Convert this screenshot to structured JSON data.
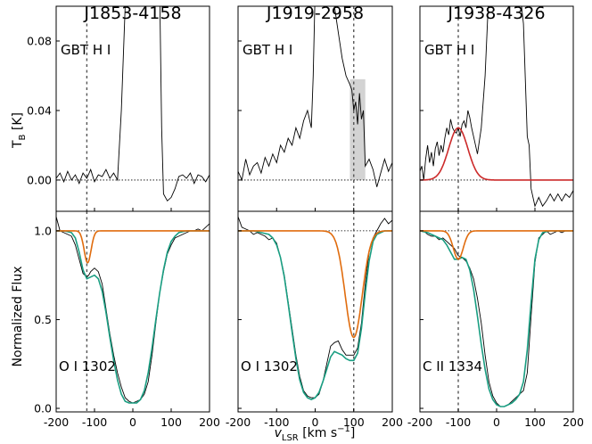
{
  "chart_data": {
    "type": "line",
    "figure": {
      "ylabel_top": "T",
      "ylabel_top_sub": "B",
      "ylabel_top_unit": " [K]",
      "ylabel_bottom": "Normalized Flux",
      "xlabel_main": "v",
      "xlabel_sub": "LSR",
      "xlabel_unit": " [km s",
      "xlabel_sup": "−1",
      "xlabel_end": "]"
    },
    "xlim": [
      -200,
      200
    ],
    "xticks": [
      -200,
      -100,
      0,
      100,
      200
    ],
    "top_ylim": [
      -0.018,
      0.1
    ],
    "top_yticks": [
      0.0,
      0.04,
      0.08
    ],
    "top_ytick_labels": [
      "0.00",
      "0.04",
      "0.08"
    ],
    "bottom_ylim": [
      -0.02,
      1.11
    ],
    "bottom_yticks": [
      0.0,
      0.5,
      1.0
    ],
    "bottom_ytick_labels": [
      "0.0",
      "0.5",
      "1.0"
    ],
    "colors": {
      "data": "#000000",
      "fit_total": "#1a9e82",
      "fit_component": "#e06c0e",
      "hi_fit": "#cc2a2a",
      "shade": "#d3d3d3"
    },
    "panels": [
      {
        "name": "J1853-4158",
        "hi_label": "GBT H I",
        "ion_label": "O I 1302",
        "vline": -120,
        "hi_x": [
          -200,
          -190,
          -180,
          -170,
          -160,
          -150,
          -140,
          -130,
          -120,
          -110,
          -100,
          -90,
          -80,
          -70,
          -60,
          -50,
          -40,
          -30,
          -20,
          -10,
          0,
          10,
          20,
          30,
          40,
          50,
          60,
          70,
          75,
          80,
          90,
          100,
          110,
          120,
          130,
          140,
          150,
          160,
          170,
          180,
          190,
          200
        ],
        "hi_y": [
          0.001,
          0.004,
          -0.001,
          0.005,
          0.0,
          0.003,
          -0.002,
          0.004,
          0.001,
          0.006,
          -0.001,
          0.003,
          0.002,
          0.006,
          0.001,
          0.004,
          0.0,
          0.04,
          0.1,
          0.11,
          0.11,
          0.11,
          0.11,
          0.11,
          0.11,
          0.11,
          0.11,
          0.11,
          0.03,
          -0.008,
          -0.012,
          -0.01,
          -0.005,
          0.002,
          0.003,
          0.001,
          0.004,
          -0.002,
          0.003,
          0.002,
          -0.001,
          0.003
        ],
        "abs_x": [
          -200,
          -190,
          -180,
          -170,
          -160,
          -150,
          -140,
          -130,
          -125,
          -120,
          -115,
          -110,
          -100,
          -90,
          -80,
          -70,
          -60,
          -50,
          -40,
          -30,
          -20,
          -10,
          0,
          10,
          20,
          30,
          40,
          50,
          60,
          70,
          80,
          90,
          100,
          110,
          120,
          130,
          140,
          150,
          160,
          170,
          180,
          190,
          200
        ],
        "abs_y": [
          1.08,
          1.0,
          0.99,
          0.98,
          0.97,
          0.92,
          0.84,
          0.76,
          0.75,
          0.74,
          0.75,
          0.77,
          0.79,
          0.77,
          0.7,
          0.56,
          0.42,
          0.3,
          0.2,
          0.12,
          0.06,
          0.04,
          0.03,
          0.04,
          0.05,
          0.08,
          0.15,
          0.3,
          0.48,
          0.65,
          0.77,
          0.87,
          0.92,
          0.96,
          0.97,
          0.98,
          0.99,
          1.0,
          1.0,
          1.01,
          1.0,
          1.02,
          1.04
        ],
        "fit_total_x": [
          -200,
          -180,
          -160,
          -150,
          -140,
          -130,
          -120,
          -110,
          -100,
          -90,
          -80,
          -70,
          -60,
          -50,
          -40,
          -30,
          -20,
          -10,
          0,
          10,
          20,
          30,
          40,
          50,
          60,
          70,
          80,
          90,
          100,
          110,
          120,
          140,
          160,
          180,
          200
        ],
        "fit_total_y": [
          1.0,
          1.0,
          0.99,
          0.96,
          0.88,
          0.78,
          0.73,
          0.74,
          0.75,
          0.73,
          0.66,
          0.54,
          0.4,
          0.27,
          0.16,
          0.08,
          0.04,
          0.03,
          0.03,
          0.03,
          0.05,
          0.1,
          0.2,
          0.34,
          0.5,
          0.65,
          0.78,
          0.88,
          0.94,
          0.97,
          0.99,
          1.0,
          1.0,
          1.0,
          1.0
        ],
        "fit_comp_center": -118,
        "fit_comp_depth": 0.18,
        "fit_comp_width": 9
      },
      {
        "name": "J1919-2958",
        "hi_label": "GBT H I",
        "ion_label": "O I 1302",
        "vline": 100,
        "shade_range": [
          90,
          130
        ],
        "hi_x": [
          -200,
          -190,
          -180,
          -170,
          -160,
          -150,
          -140,
          -130,
          -120,
          -110,
          -100,
          -90,
          -80,
          -70,
          -60,
          -50,
          -40,
          -30,
          -20,
          -10,
          -5,
          0,
          10,
          20,
          30,
          40,
          50,
          60,
          70,
          80,
          90,
          95,
          100,
          105,
          110,
          115,
          120,
          125,
          130,
          140,
          150,
          160,
          170,
          180,
          190,
          200
        ],
        "hi_y": [
          0.005,
          0.0,
          0.012,
          0.003,
          0.008,
          0.01,
          0.004,
          0.013,
          0.008,
          0.015,
          0.01,
          0.02,
          0.016,
          0.024,
          0.02,
          0.03,
          0.024,
          0.034,
          0.04,
          0.03,
          0.06,
          0.11,
          0.11,
          0.11,
          0.11,
          0.11,
          0.1,
          0.085,
          0.07,
          0.06,
          0.055,
          0.052,
          0.04,
          0.045,
          0.032,
          0.05,
          0.035,
          0.04,
          0.008,
          0.012,
          0.006,
          -0.004,
          0.004,
          0.012,
          0.005,
          0.01
        ],
        "abs_x": [
          -200,
          -190,
          -180,
          -170,
          -160,
          -150,
          -140,
          -130,
          -120,
          -110,
          -100,
          -90,
          -80,
          -70,
          -60,
          -50,
          -40,
          -30,
          -20,
          -10,
          0,
          10,
          20,
          30,
          40,
          50,
          60,
          70,
          80,
          90,
          100,
          110,
          120,
          130,
          140,
          150,
          160,
          170,
          180,
          190,
          200
        ],
        "abs_y": [
          1.08,
          1.02,
          1.01,
          1.0,
          0.98,
          0.99,
          0.98,
          0.97,
          0.95,
          0.96,
          0.93,
          0.85,
          0.75,
          0.6,
          0.45,
          0.3,
          0.18,
          0.1,
          0.07,
          0.06,
          0.06,
          0.08,
          0.15,
          0.25,
          0.35,
          0.37,
          0.38,
          0.33,
          0.3,
          0.3,
          0.3,
          0.34,
          0.48,
          0.7,
          0.88,
          0.96,
          1.0,
          1.04,
          1.07,
          1.04,
          1.06
        ],
        "fit_total_x": [
          -200,
          -180,
          -160,
          -140,
          -120,
          -110,
          -100,
          -90,
          -80,
          -70,
          -60,
          -50,
          -40,
          -30,
          -20,
          -10,
          0,
          10,
          20,
          30,
          40,
          50,
          60,
          70,
          80,
          90,
          100,
          110,
          120,
          130,
          140,
          150,
          160,
          180,
          200
        ],
        "fit_total_y": [
          1.0,
          1.0,
          1.0,
          0.99,
          0.98,
          0.96,
          0.92,
          0.85,
          0.74,
          0.59,
          0.43,
          0.28,
          0.16,
          0.09,
          0.06,
          0.05,
          0.06,
          0.09,
          0.15,
          0.22,
          0.29,
          0.32,
          0.31,
          0.3,
          0.28,
          0.27,
          0.27,
          0.31,
          0.45,
          0.65,
          0.83,
          0.94,
          0.98,
          1.0,
          1.0
        ],
        "fit_comp_center": 100,
        "fit_comp_depth": 0.6,
        "fit_comp_width": 22
      },
      {
        "name": "J1938-4326",
        "hi_label": "GBT H I",
        "ion_label": "C II 1334",
        "vline": -100,
        "hi_x": [
          -200,
          -195,
          -190,
          -185,
          -180,
          -175,
          -170,
          -165,
          -160,
          -155,
          -150,
          -145,
          -140,
          -135,
          -130,
          -125,
          -120,
          -115,
          -110,
          -105,
          -100,
          -95,
          -90,
          -85,
          -80,
          -75,
          -70,
          -65,
          -60,
          -50,
          -40,
          -30,
          -20,
          -10,
          0,
          10,
          20,
          30,
          40,
          50,
          60,
          70,
          80,
          85,
          90,
          100,
          110,
          120,
          130,
          140,
          150,
          160,
          170,
          180,
          190,
          200
        ],
        "hi_y": [
          0.005,
          0.008,
          0.0,
          0.012,
          0.02,
          0.01,
          0.016,
          0.008,
          0.018,
          0.022,
          0.014,
          0.02,
          0.016,
          0.024,
          0.03,
          0.026,
          0.035,
          0.03,
          0.028,
          0.027,
          0.03,
          0.025,
          0.032,
          0.034,
          0.03,
          0.04,
          0.036,
          0.03,
          0.025,
          0.015,
          0.03,
          0.06,
          0.11,
          0.11,
          0.11,
          0.11,
          0.11,
          0.11,
          0.11,
          0.11,
          0.11,
          0.09,
          0.025,
          0.02,
          -0.005,
          -0.015,
          -0.01,
          -0.015,
          -0.012,
          -0.008,
          -0.012,
          -0.008,
          -0.012,
          -0.008,
          -0.01,
          -0.006
        ],
        "hi_fit_center": -100,
        "hi_fit_amp": 0.03,
        "hi_fit_sigma": 25,
        "abs_x": [
          -200,
          -190,
          -180,
          -170,
          -160,
          -150,
          -140,
          -130,
          -120,
          -110,
          -100,
          -90,
          -80,
          -70,
          -60,
          -50,
          -40,
          -30,
          -20,
          -10,
          0,
          10,
          20,
          30,
          40,
          50,
          60,
          70,
          80,
          90,
          100,
          110,
          120,
          130,
          140,
          150,
          160,
          170,
          180,
          190,
          200
        ],
        "abs_y": [
          1.0,
          1.0,
          0.98,
          0.97,
          0.97,
          0.95,
          0.96,
          0.94,
          0.92,
          0.9,
          0.86,
          0.85,
          0.83,
          0.79,
          0.73,
          0.62,
          0.48,
          0.3,
          0.15,
          0.07,
          0.03,
          0.01,
          0.01,
          0.02,
          0.04,
          0.06,
          0.08,
          0.1,
          0.2,
          0.52,
          0.82,
          0.96,
          0.98,
          1.0,
          0.98,
          0.99,
          1.0,
          0.99,
          1.0,
          1.0,
          1.0
        ],
        "fit_total_x": [
          -200,
          -180,
          -160,
          -140,
          -130,
          -120,
          -110,
          -100,
          -90,
          -80,
          -70,
          -60,
          -50,
          -40,
          -30,
          -20,
          -10,
          0,
          10,
          20,
          30,
          40,
          50,
          60,
          70,
          80,
          90,
          100,
          110,
          120,
          140,
          160,
          180,
          200
        ],
        "fit_total_y": [
          1.0,
          0.99,
          0.97,
          0.95,
          0.92,
          0.88,
          0.84,
          0.84,
          0.85,
          0.84,
          0.78,
          0.67,
          0.52,
          0.36,
          0.22,
          0.11,
          0.05,
          0.02,
          0.01,
          0.01,
          0.02,
          0.03,
          0.05,
          0.08,
          0.15,
          0.33,
          0.6,
          0.84,
          0.95,
          0.99,
          1.0,
          1.0,
          1.0,
          1.0
        ],
        "fit_comp_center": -100,
        "fit_comp_depth": 0.16,
        "fit_comp_width": 13
      }
    ]
  }
}
